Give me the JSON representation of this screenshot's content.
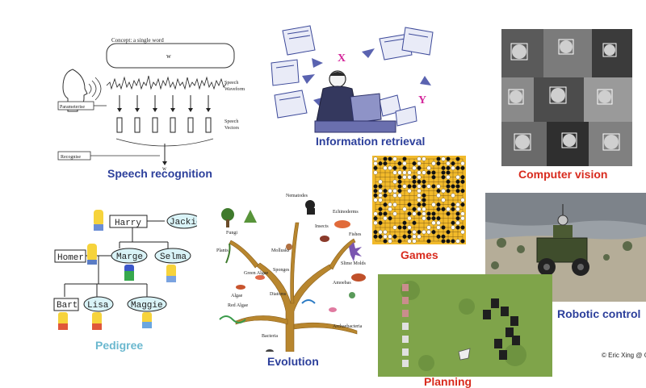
{
  "speech": {
    "caption": "Speech recognition",
    "concept_label": "Concept: a single word",
    "word": "w",
    "waveform_label": "Speech Waveform",
    "vectors_label": "Speech Vectors",
    "parameterise": "Parameterise",
    "recognise": "Recognise",
    "output": "w"
  },
  "info": {
    "caption": "Information retrieval",
    "x_label": "X",
    "y_label": "Y"
  },
  "vision": {
    "caption": "Computer vision"
  },
  "games": {
    "caption": "Games"
  },
  "robotic": {
    "caption": "Robotic control"
  },
  "planning": {
    "caption": "Planning"
  },
  "pedigree": {
    "caption": "Pedigree",
    "people": [
      "Harry",
      "Jackie",
      "Homer",
      "Marge",
      "Selma",
      "Bart",
      "Lisa",
      "Maggie"
    ]
  },
  "evolution": {
    "caption": "Evolution",
    "labels": [
      "Nematodes",
      "Insects",
      "Mollusks",
      "Echinoderms",
      "Fishes",
      "Slime Molds",
      "Fungi",
      "Sponges",
      "Plants",
      "Amoebas",
      "Algae",
      "Bacteria",
      "Diatoms",
      "Green Algae",
      "Red Algae",
      "Archaebacteria"
    ]
  },
  "credit": "© Eric Xing @ C",
  "colors": {
    "caption_blue": "#2c3f9b",
    "caption_red": "#d82b1e",
    "caption_teal": "#6bb8cf",
    "go_board": "#f2ba2a",
    "tree_brown": "#b8862e"
  }
}
